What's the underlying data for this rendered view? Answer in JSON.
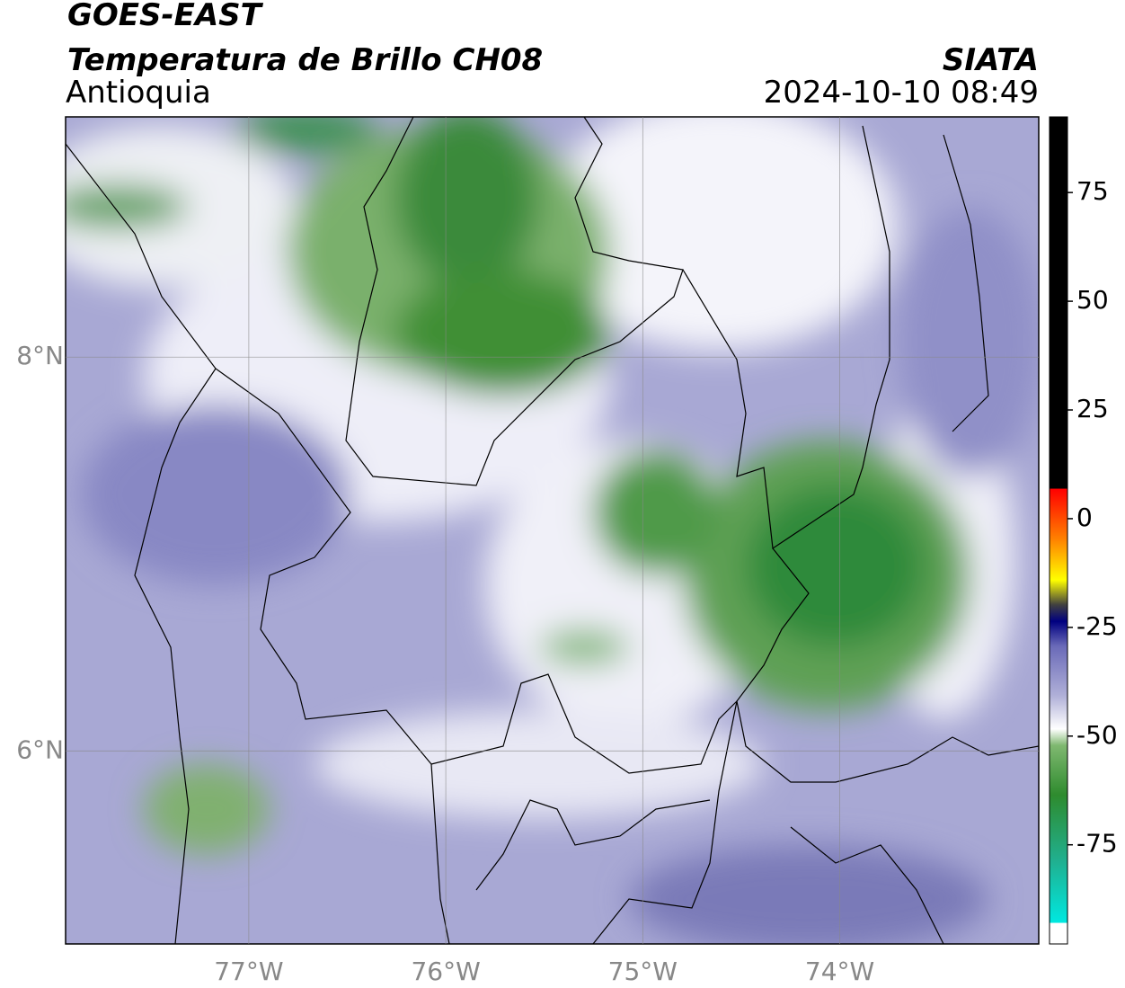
{
  "header": {
    "line1": "GOES-EAST",
    "title": "Temperatura de Brillo CH08",
    "region": "Antioquia",
    "org": "SIATA",
    "datetime": "2024-10-10 08:49"
  },
  "map": {
    "xlim": [
      -77.93,
      -72.99
    ],
    "ylim": [
      5.02,
      9.22
    ],
    "xticks": [
      {
        "value": -77,
        "label": "77°W"
      },
      {
        "value": -76,
        "label": "76°W"
      },
      {
        "value": -75,
        "label": "75°W"
      },
      {
        "value": -74,
        "label": "74°W"
      }
    ],
    "yticks": [
      {
        "value": 6,
        "label": "6°N"
      },
      {
        "value": 8,
        "label": "8°N"
      }
    ],
    "grid": true
  },
  "colorbar": {
    "lim": [
      -97.8,
      92.4
    ],
    "ticks": [
      75,
      50,
      25,
      0,
      -25,
      -50,
      -75
    ]
  }
}
